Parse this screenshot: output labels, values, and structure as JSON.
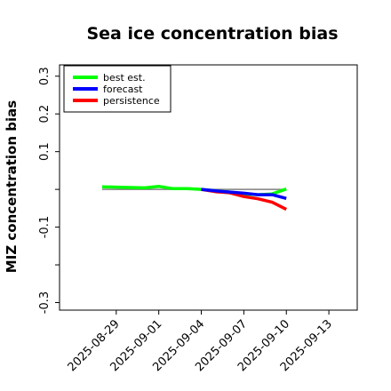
{
  "chart_data": {
    "type": "line",
    "title": "Sea ice concentration bias",
    "ylabel": "MIZ concentration bias",
    "xlabel": "",
    "ylim": [
      -0.32,
      0.33
    ],
    "yticks": [
      -0.3,
      -0.2,
      -0.1,
      0.0,
      0.1,
      0.2,
      0.3
    ],
    "yticklabels": [
      "-0.3",
      "",
      "-0.1",
      "",
      "0.1",
      "0.2",
      "0.3"
    ],
    "xlim": [
      "2025-08-25",
      "2025-09-15"
    ],
    "xticks": [
      "2025-08-29",
      "2025-09-01",
      "2025-09-04",
      "2025-09-07",
      "2025-09-10",
      "2025-09-13"
    ],
    "highlight_tick": "2025-09-04",
    "highlight_color": "#228B22",
    "reference_line": {
      "y": 0.0,
      "color": "#808080"
    },
    "legend": {
      "position": "top-left"
    },
    "series": [
      {
        "name": "best est.",
        "color": "#00ff00",
        "x": [
          "2025-08-28",
          "2025-08-29",
          "2025-08-30",
          "2025-08-31",
          "2025-09-01",
          "2025-09-02",
          "2025-09-03",
          "2025-09-04",
          "2025-09-05",
          "2025-09-06",
          "2025-09-07",
          "2025-09-08",
          "2025-09-09",
          "2025-09-10"
        ],
        "y": [
          0.007,
          0.006,
          0.005,
          0.004,
          0.008,
          0.002,
          0.002,
          0.0,
          -0.004,
          -0.007,
          -0.012,
          -0.014,
          -0.012,
          0.001
        ]
      },
      {
        "name": "forecast",
        "color": "#0000ff",
        "x": [
          "2025-09-04",
          "2025-09-05",
          "2025-09-06",
          "2025-09-07",
          "2025-09-08",
          "2025-09-09",
          "2025-09-10"
        ],
        "y": [
          0.0,
          -0.004,
          -0.007,
          -0.01,
          -0.014,
          -0.014,
          -0.024
        ]
      },
      {
        "name": "persistence",
        "color": "#ff0000",
        "x": [
          "2025-09-04",
          "2025-09-05",
          "2025-09-06",
          "2025-09-07",
          "2025-09-08",
          "2025-09-09",
          "2025-09-10"
        ],
        "y": [
          0.0,
          -0.006,
          -0.009,
          -0.019,
          -0.025,
          -0.034,
          -0.053
        ]
      }
    ]
  }
}
